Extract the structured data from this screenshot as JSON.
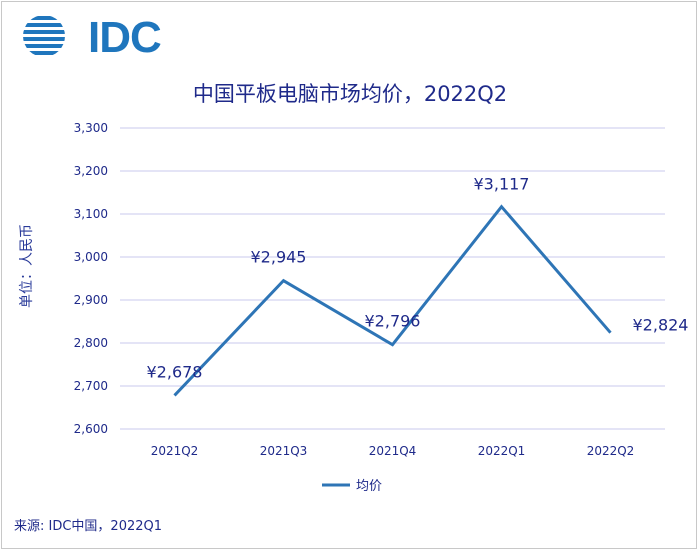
{
  "logo": {
    "text": "IDC",
    "color": "#1f76bd"
  },
  "title": "中国平板电脑市场均价，2022Q2",
  "source": "来源: IDC中国，2022Q1",
  "chart_data": {
    "type": "line",
    "title": "中国平板电脑市场均价，2022Q2",
    "ylabel": "单位：人民币",
    "xlabel": "",
    "categories": [
      "2021Q2",
      "2021Q3",
      "2021Q4",
      "2022Q1",
      "2022Q2"
    ],
    "series": [
      {
        "name": "均价",
        "values": [
          2678,
          2945,
          2796,
          3117,
          2824
        ],
        "color": "#2e75b6"
      }
    ],
    "data_labels": [
      "¥2,678",
      "¥2,945",
      "¥2,796",
      "¥3,117",
      "¥2,824"
    ],
    "ylim": [
      2600,
      3300
    ],
    "yticks": [
      2600,
      2700,
      2800,
      2900,
      3000,
      3100,
      3200,
      3300
    ],
    "ytick_labels": [
      "2,600",
      "2,700",
      "2,800",
      "2,900",
      "3,000",
      "3,100",
      "3,200",
      "3,300"
    ],
    "grid": true,
    "gridline_color": "#c9c9ec",
    "legend_position": "bottom"
  }
}
